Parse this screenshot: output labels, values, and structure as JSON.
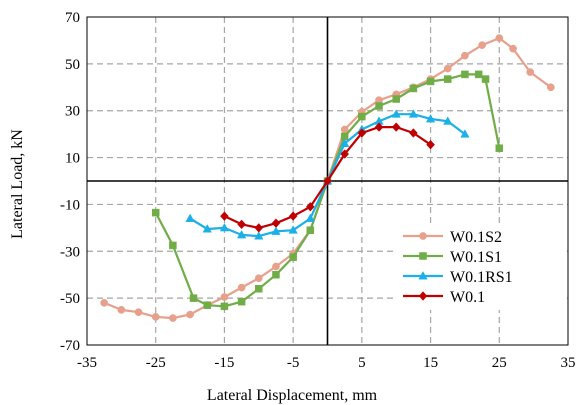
{
  "chart_data": {
    "type": "line",
    "title": "",
    "xlabel": "Lateral Displacement, mm",
    "ylabel": "Lateral Load, kN",
    "xlim": [
      -35,
      35
    ],
    "ylim": [
      -70,
      70
    ],
    "xticks": [
      -35,
      -25,
      -15,
      -5,
      5,
      15,
      25,
      35
    ],
    "yticks": [
      -70,
      -50,
      -30,
      -10,
      10,
      30,
      50,
      70
    ],
    "xtick_labels": [
      "-35",
      "-25",
      "-15",
      "-5",
      "5",
      "15",
      "25",
      "35"
    ],
    "ytick_labels": [
      "-70",
      "-50",
      "-30",
      "-10",
      "10",
      "30",
      "50",
      "70"
    ],
    "grid": true,
    "legend_position": "bottom-right",
    "series": [
      {
        "name": "W0.1S2",
        "color": "#E6A08C",
        "marker": "circle",
        "points": [
          [
            -32.5,
            -52
          ],
          [
            -30,
            -55
          ],
          [
            -27.5,
            -56
          ],
          [
            -25,
            -58
          ],
          [
            -22.5,
            -58.5
          ],
          [
            -20,
            -57
          ],
          [
            -17.5,
            -53
          ],
          [
            -15,
            -49.5
          ],
          [
            -12.5,
            -45.5
          ],
          [
            -10,
            -41.5
          ],
          [
            -7.5,
            -36.5
          ],
          [
            -5,
            -31
          ],
          [
            -2.5,
            -21
          ],
          [
            0,
            0
          ],
          [
            2.5,
            22
          ],
          [
            5,
            29.5
          ],
          [
            7.5,
            34.5
          ],
          [
            10,
            37
          ],
          [
            12.5,
            40
          ],
          [
            15,
            43.5
          ],
          [
            17.5,
            48
          ],
          [
            20,
            53.5
          ],
          [
            22.5,
            58
          ],
          [
            25,
            61
          ],
          [
            27,
            56.5
          ],
          [
            29.5,
            46.5
          ],
          [
            32.5,
            40
          ]
        ]
      },
      {
        "name": "W0.1S1",
        "color": "#70AD47",
        "marker": "square",
        "points": [
          [
            -25,
            -13.5
          ],
          [
            -22.5,
            -27.5
          ],
          [
            -19.5,
            -50
          ],
          [
            -17.5,
            -53
          ],
          [
            -15,
            -53.5
          ],
          [
            -12.5,
            -51.5
          ],
          [
            -10,
            -46
          ],
          [
            -7.5,
            -40
          ],
          [
            -5,
            -32.5
          ],
          [
            -2.5,
            -21
          ],
          [
            0,
            0
          ],
          [
            2.5,
            19
          ],
          [
            5,
            27.5
          ],
          [
            7.5,
            32
          ],
          [
            10,
            35
          ],
          [
            12.5,
            39.5
          ],
          [
            15,
            42.5
          ],
          [
            17.5,
            43.5
          ],
          [
            20,
            45.5
          ],
          [
            22,
            45.5
          ],
          [
            23,
            43.5
          ],
          [
            25,
            14
          ]
        ]
      },
      {
        "name": "W0.1RS1",
        "color": "#1CB0E8",
        "marker": "triangle",
        "points": [
          [
            -20,
            -16
          ],
          [
            -17.5,
            -20.5
          ],
          [
            -15,
            -20
          ],
          [
            -12.5,
            -23
          ],
          [
            -10,
            -23.5
          ],
          [
            -7.5,
            -21.5
          ],
          [
            -5,
            -21
          ],
          [
            -2.5,
            -16
          ],
          [
            0,
            0
          ],
          [
            2.5,
            16
          ],
          [
            5,
            22
          ],
          [
            7.5,
            25.5
          ],
          [
            10,
            28.5
          ],
          [
            12.5,
            28.5
          ],
          [
            15,
            26.5
          ],
          [
            17.5,
            25.5
          ],
          [
            20,
            20
          ]
        ]
      },
      {
        "name": "W0.1",
        "color": "#C00000",
        "marker": "diamond",
        "points": [
          [
            -15,
            -15
          ],
          [
            -12.5,
            -18.5
          ],
          [
            -10,
            -20
          ],
          [
            -7.5,
            -18
          ],
          [
            -5,
            -15
          ],
          [
            -2.5,
            -11
          ],
          [
            0,
            0
          ],
          [
            2.5,
            11.5
          ],
          [
            5,
            20.5
          ],
          [
            7.5,
            23
          ],
          [
            10,
            23
          ],
          [
            12.5,
            20.5
          ],
          [
            15,
            15.5
          ]
        ]
      }
    ]
  }
}
